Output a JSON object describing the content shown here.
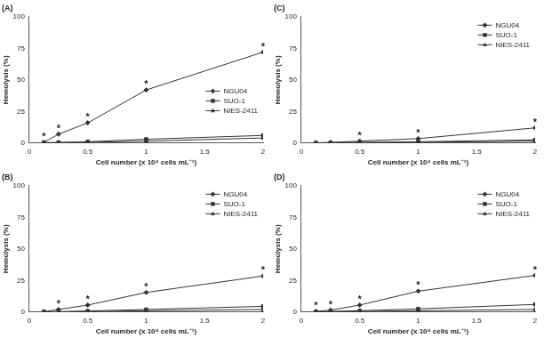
{
  "chart_data": [
    {
      "type": "line",
      "title": "(A)",
      "x_label": "Cell number (x 10⁴ cells mL⁻¹)",
      "y_label": "Hemolysis (%)",
      "x": [
        0.125,
        0.25,
        0.5,
        1,
        2
      ],
      "series": [
        {
          "name": "NGU04",
          "color": "#333333",
          "marker": "diamond",
          "values": [
            0.5,
            7,
            16,
            42,
            72
          ]
        },
        {
          "name": "SUO-1",
          "color": "#333333",
          "marker": "square",
          "values": [
            0.3,
            0.5,
            1,
            3,
            6
          ]
        },
        {
          "name": "NIES-2411",
          "color": "#333333",
          "marker": "triangle",
          "values": [
            0.2,
            0.3,
            0.5,
            1.5,
            4
          ]
        }
      ],
      "xlim": [
        0,
        2
      ],
      "xticks": [
        0,
        0.5,
        1,
        1.5,
        2
      ],
      "ylim": [
        0,
        100
      ],
      "yticks": [
        0,
        25,
        50,
        75,
        100
      ],
      "grid": false,
      "legend": "center right",
      "annotations": [
        {
          "x": 0.125,
          "y": 0.5,
          "text": "*"
        },
        {
          "x": 0.25,
          "y": 7,
          "text": "*"
        },
        {
          "x": 0.5,
          "y": 16,
          "text": "*"
        },
        {
          "x": 1,
          "y": 42,
          "text": "*"
        },
        {
          "x": 2,
          "y": 72,
          "text": "*"
        }
      ]
    },
    {
      "type": "line",
      "title": "(C)",
      "x_label": "Cell number (x 10⁴ cells mL⁻¹)",
      "y_label": "Hemolysis (%)",
      "x": [
        0.125,
        0.25,
        0.5,
        1,
        2
      ],
      "series": [
        {
          "name": "NGU04",
          "color": "#333333",
          "marker": "diamond",
          "values": [
            0.2,
            0.5,
            1.5,
            3.5,
            12
          ]
        },
        {
          "name": "SUO-1",
          "color": "#333333",
          "marker": "square",
          "values": [
            0.1,
            0.2,
            0.5,
            1,
            2.5
          ]
        },
        {
          "name": "NIES-2411",
          "color": "#333333",
          "marker": "triangle",
          "values": [
            0.1,
            0.1,
            0.3,
            0.6,
            1.5
          ]
        }
      ],
      "xlim": [
        0,
        2
      ],
      "xticks": [
        0,
        0.5,
        1,
        1.5,
        2
      ],
      "ylim": [
        0,
        100
      ],
      "yticks": [
        0,
        25,
        50,
        75,
        100
      ],
      "grid": false,
      "legend": "upper right",
      "annotations": [
        {
          "x": 0.5,
          "y": 1.5,
          "text": "*"
        },
        {
          "x": 1,
          "y": 3.5,
          "text": "*"
        },
        {
          "x": 2,
          "y": 12,
          "text": "*"
        }
      ]
    },
    {
      "type": "line",
      "title": "(B)",
      "x_label": "Cell number (x 10⁴ cells mL⁻¹)",
      "y_label": "Hemolysis (%)",
      "x": [
        0.125,
        0.25,
        0.5,
        1,
        2
      ],
      "series": [
        {
          "name": "NGU04",
          "color": "#333333",
          "marker": "diamond",
          "values": [
            0.3,
            2,
            5.5,
            15.5,
            28.5
          ]
        },
        {
          "name": "SUO-1",
          "color": "#333333",
          "marker": "square",
          "values": [
            0.2,
            0.3,
            0.8,
            2,
            4.5
          ]
        },
        {
          "name": "NIES-2411",
          "color": "#333333",
          "marker": "triangle",
          "values": [
            0.1,
            0.2,
            0.4,
            1,
            2
          ]
        }
      ],
      "xlim": [
        0,
        2
      ],
      "xticks": [
        0,
        0.5,
        1,
        1.5,
        2
      ],
      "ylim": [
        0,
        100
      ],
      "yticks": [
        0,
        25,
        50,
        75,
        100
      ],
      "grid": false,
      "legend": "upper right",
      "annotations": [
        {
          "x": 0.25,
          "y": 2,
          "text": "*"
        },
        {
          "x": 0.5,
          "y": 5.5,
          "text": "*"
        },
        {
          "x": 1,
          "y": 15.5,
          "text": "*"
        },
        {
          "x": 2,
          "y": 28.5,
          "text": "*"
        }
      ]
    },
    {
      "type": "line",
      "title": "(D)",
      "x_label": "Cell number (x 10⁴ cells mL⁻¹)",
      "y_label": "Hemolysis (%)",
      "x": [
        0.125,
        0.25,
        0.5,
        1,
        2
      ],
      "series": [
        {
          "name": "NGU04",
          "color": "#333333",
          "marker": "diamond",
          "values": [
            0.5,
            1.5,
            5.5,
            16.5,
            29
          ]
        },
        {
          "name": "SUO-1",
          "color": "#333333",
          "marker": "square",
          "values": [
            0.3,
            0.5,
            1,
            2.5,
            6
          ]
        },
        {
          "name": "NIES-2411",
          "color": "#333333",
          "marker": "triangle",
          "values": [
            0.2,
            0.3,
            0.5,
            1,
            2
          ]
        }
      ],
      "xlim": [
        0,
        2
      ],
      "xticks": [
        0,
        0.5,
        1,
        1.5,
        2
      ],
      "ylim": [
        0,
        100
      ],
      "yticks": [
        0,
        25,
        50,
        75,
        100
      ],
      "grid": false,
      "legend": "upper right",
      "annotations": [
        {
          "x": 0.125,
          "y": 0.5,
          "text": "*"
        },
        {
          "x": 0.25,
          "y": 1.5,
          "text": "*"
        },
        {
          "x": 0.5,
          "y": 5.5,
          "text": "*"
        },
        {
          "x": 1,
          "y": 16.5,
          "text": "*"
        },
        {
          "x": 2,
          "y": 29,
          "text": "*"
        }
      ]
    }
  ]
}
